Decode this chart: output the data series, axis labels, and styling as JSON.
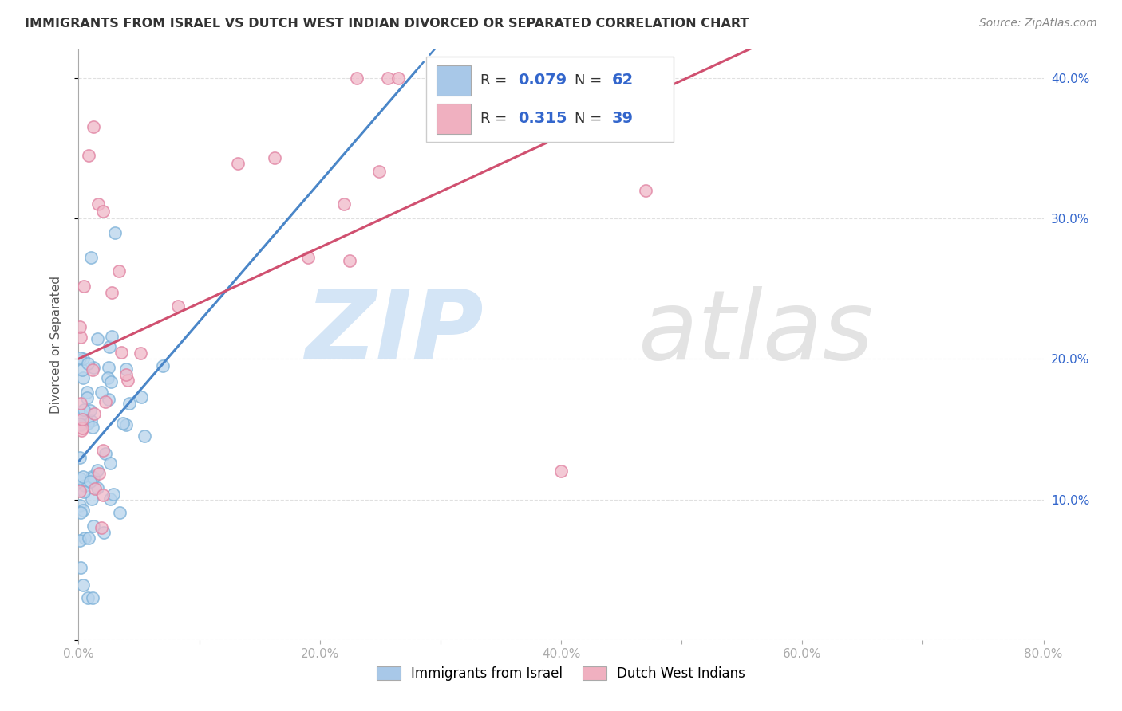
{
  "title": "IMMIGRANTS FROM ISRAEL VS DUTCH WEST INDIAN DIVORCED OR SEPARATED CORRELATION CHART",
  "source": "Source: ZipAtlas.com",
  "ylabel": "Divorced or Separated",
  "xlim": [
    0.0,
    0.8
  ],
  "ylim": [
    0.0,
    0.42
  ],
  "xticks": [
    0.0,
    0.1,
    0.2,
    0.3,
    0.4,
    0.5,
    0.6,
    0.7,
    0.8
  ],
  "xtick_labels": [
    "0.0%",
    "",
    "20.0%",
    "",
    "40.0%",
    "",
    "60.0%",
    "",
    "80.0%"
  ],
  "yticks": [
    0.0,
    0.1,
    0.2,
    0.3,
    0.4
  ],
  "ytick_labels_right": [
    "",
    "10.0%",
    "20.0%",
    "30.0%",
    "40.0%"
  ],
  "series1_name": "Immigrants from Israel",
  "series1_edge_color": "#7ab0d8",
  "series1_face_color": "#b8d4ec",
  "series1_line_color": "#4a86c8",
  "series1_R": 0.079,
  "series1_N": 62,
  "series2_name": "Dutch West Indians",
  "series2_edge_color": "#e080a0",
  "series2_face_color": "#f0b8c8",
  "series2_line_color": "#d05070",
  "series2_R": 0.315,
  "series2_N": 39,
  "legend_R_color": "#3366cc",
  "legend_box1_color": "#a8c8e8",
  "legend_box2_color": "#f0b0c0",
  "watermark_zip_color": "#b8d4f0",
  "watermark_atlas_color": "#c8c8c8",
  "grid_color": "#cccccc",
  "title_color": "#333333",
  "source_color": "#888888",
  "axis_label_color": "#555555",
  "right_tick_color": "#3366cc"
}
